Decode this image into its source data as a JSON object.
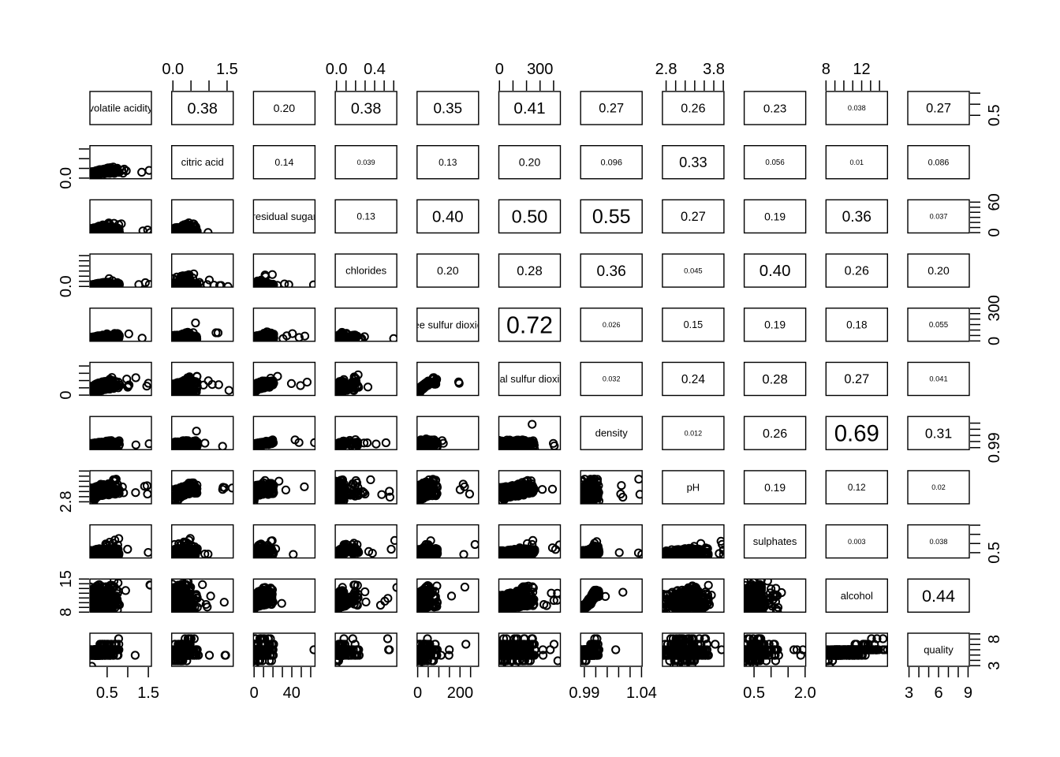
{
  "figure": {
    "kind": "R pairs scatterplot matrix",
    "background": "#ffffff",
    "foreground": "#000000"
  },
  "chart_data": {
    "type": "scatter",
    "subtype": "scatterplot_matrix",
    "legend_position": "none",
    "grid": false,
    "upper_triangle": "absolute correlation coefficients, text size proportional to |r|",
    "lower_triangle": "pairwise scatter plots, open circles, heavy overplotting",
    "knot_positions": [
      0,
      0.1,
      0.2,
      0.3,
      0.4,
      0.5,
      0.6,
      0.7,
      0.8,
      0.9,
      0.99,
      1
    ],
    "variables": [
      {
        "label": "volatile acidity",
        "range": [
          0.08,
          1.6
        ],
        "knots": [
          0,
          0.066,
          0.086,
          0.099,
          0.118,
          0.138,
          0.158,
          0.21,
          0.27,
          0.335,
          0.48,
          1
        ]
      },
      {
        "label": "citric acid",
        "range": [
          0.0,
          1.66
        ],
        "knots": [
          0,
          0.084,
          0.127,
          0.151,
          0.169,
          0.187,
          0.205,
          0.235,
          0.259,
          0.295,
          0.42,
          1
        ]
      },
      {
        "label": "residual sugar",
        "range": [
          0.6,
          65.8
        ],
        "knots": [
          0,
          0.009,
          0.015,
          0.018,
          0.021,
          0.037,
          0.064,
          0.106,
          0.147,
          0.192,
          0.33,
          1
        ]
      },
      {
        "label": "chlorides",
        "range": [
          0.009,
          0.611
        ],
        "knots": [
          0,
          0.037,
          0.048,
          0.055,
          0.058,
          0.063,
          0.075,
          0.093,
          0.115,
          0.143,
          0.38,
          1
        ]
      },
      {
        "label": "free sulfur dioxide",
        "range": [
          1,
          289
        ],
        "knots": [
          0,
          0.024,
          0.042,
          0.056,
          0.073,
          0.097,
          0.118,
          0.139,
          0.163,
          0.194,
          0.33,
          1
        ]
      },
      {
        "label": "total sulfur dioxide",
        "range": [
          6,
          440
        ],
        "knots": [
          0,
          0.053,
          0.097,
          0.157,
          0.214,
          0.258,
          0.3,
          0.341,
          0.382,
          0.438,
          0.585,
          1
        ]
      },
      {
        "label": "density",
        "range": [
          0.987,
          1.039
        ],
        "knots": [
          0,
          0.06,
          0.09,
          0.112,
          0.129,
          0.152,
          0.175,
          0.188,
          0.206,
          0.229,
          0.3,
          1
        ]
      },
      {
        "label": "pH",
        "range": [
          2.72,
          4.01
        ],
        "knots": [
          0,
          0.202,
          0.256,
          0.302,
          0.341,
          0.38,
          0.426,
          0.465,
          0.512,
          0.581,
          0.75,
          1
        ]
      },
      {
        "label": "sulphates",
        "range": [
          0.22,
          2.0
        ],
        "knots": [
          0,
          0.067,
          0.09,
          0.107,
          0.124,
          0.163,
          0.185,
          0.213,
          0.242,
          0.287,
          0.55,
          1
        ]
      },
      {
        "label": "alcohol",
        "range": [
          8,
          14.9
        ],
        "knots": [
          0,
          0.116,
          0.159,
          0.203,
          0.246,
          0.333,
          0.406,
          0.478,
          0.565,
          0.652,
          0.85,
          1
        ]
      },
      {
        "label": "quality",
        "range": [
          3,
          9
        ],
        "discrete": true,
        "knots": [
          0,
          0.333,
          0.333,
          0.333,
          0.333,
          0.5,
          0.5,
          0.5,
          0.5,
          0.667,
          0.833,
          1
        ]
      }
    ],
    "corr_upper": [
      [
        "0.38",
        "0.20",
        "0.38",
        "0.35",
        "0.41",
        "0.27",
        "0.26",
        "0.23",
        "0.038",
        "0.27"
      ],
      [
        "0.14",
        "0.039",
        "0.13",
        "0.20",
        "0.096",
        "0.33",
        "0.056",
        "0.01",
        "0.086"
      ],
      [
        "0.13",
        "0.40",
        "0.50",
        "0.55",
        "0.27",
        "0.19",
        "0.36",
        "0.037"
      ],
      [
        "0.20",
        "0.28",
        "0.36",
        "0.045",
        "0.40",
        "0.26",
        "0.20"
      ],
      [
        "0.72",
        "0.026",
        "0.15",
        "0.19",
        "0.18",
        "0.055"
      ],
      [
        "0.032",
        "0.24",
        "0.28",
        "0.27",
        "0.041"
      ],
      [
        "0.012",
        "0.26",
        "0.69",
        "0.31"
      ],
      [
        "0.19",
        "0.12",
        "0.02"
      ],
      [
        "0.003",
        "0.038"
      ],
      [
        "0.44"
      ]
    ],
    "axes": {
      "top": [
        {
          "col": 2,
          "ticks": {
            "n": 4,
            "from": 0.02,
            "to": 0.9
          },
          "labels": [
            {
              "text": "0.0",
              "at": 0.02
            },
            {
              "text": "1.5",
              "at": 0.9
            }
          ]
        },
        {
          "col": 4,
          "ticks": {
            "n": 7,
            "from": 0.02,
            "to": 0.95
          },
          "labels": [
            {
              "text": "0.0",
              "at": 0.02
            },
            {
              "text": "0.4",
              "at": 0.64
            }
          ]
        },
        {
          "col": 6,
          "ticks": {
            "n": 5,
            "from": 0.01,
            "to": 0.89
          },
          "labels": [
            {
              "text": "0",
              "at": 0.01
            },
            {
              "text": "300",
              "at": 0.67
            }
          ]
        },
        {
          "col": 8,
          "ticks": {
            "n": 7,
            "from": 0.06,
            "to": 0.99
          },
          "labels": [
            {
              "text": "2.8",
              "at": 0.06
            },
            {
              "text": "3.8",
              "at": 0.835
            }
          ]
        },
        {
          "col": 10,
          "ticks": {
            "n": 7,
            "from": 0.0,
            "to": 0.87
          },
          "labels": [
            {
              "text": "8",
              "at": 0.0
            },
            {
              "text": "12",
              "at": 0.58
            }
          ]
        }
      ],
      "bottom": [
        {
          "col": 1,
          "ticks": {
            "n": 3,
            "from": 0.28,
            "to": 0.95
          },
          "labels": [
            {
              "text": "0.5",
              "at": 0.28
            },
            {
              "text": "1.5",
              "at": 0.95
            }
          ]
        },
        {
          "col": 3,
          "ticks": {
            "n": 7,
            "from": 0.01,
            "to": 0.93
          },
          "labels": [
            {
              "text": "0",
              "at": 0.01
            },
            {
              "text": "40",
              "at": 0.62
            }
          ]
        },
        {
          "col": 5,
          "ticks": {
            "n": 6,
            "from": 0.01,
            "to": 0.87
          },
          "labels": [
            {
              "text": "0",
              "at": 0.01
            },
            {
              "text": "200",
              "at": 0.7
            }
          ]
        },
        {
          "col": 7,
          "ticks": {
            "n": 6,
            "from": 0.06,
            "to": 0.99
          },
          "labels": [
            {
              "text": "0.99",
              "at": 0.06
            },
            {
              "text": "1.04",
              "at": 0.99
            }
          ]
        },
        {
          "col": 9,
          "ticks": {
            "n": 4,
            "from": 0.16,
            "to": 0.99
          },
          "labels": [
            {
              "text": "0.5",
              "at": 0.16
            },
            {
              "text": "2.0",
              "at": 0.99
            }
          ]
        },
        {
          "col": 11,
          "ticks": {
            "n": 7,
            "from": 0.02,
            "to": 0.98
          },
          "labels": [
            {
              "text": "3",
              "at": 0.02
            },
            {
              "text": "6",
              "at": 0.5
            },
            {
              "text": "9",
              "at": 0.98
            }
          ]
        }
      ],
      "left": [
        {
          "row": 2,
          "ticks": {
            "n": 4,
            "from": 0.02,
            "to": 0.9
          },
          "labels": [
            {
              "text": "0.0",
              "at": 0.02
            }
          ]
        },
        {
          "row": 4,
          "ticks": {
            "n": 7,
            "from": 0.02,
            "to": 0.95
          },
          "labels": [
            {
              "text": "0.0",
              "at": 0.02
            }
          ]
        },
        {
          "row": 6,
          "ticks": {
            "n": 5,
            "from": 0.01,
            "to": 0.89
          },
          "labels": [
            {
              "text": "0",
              "at": 0.01
            }
          ]
        },
        {
          "row": 8,
          "ticks": {
            "n": 7,
            "from": 0.06,
            "to": 0.99
          },
          "labels": [
            {
              "text": "2.8",
              "at": 0.06
            }
          ]
        },
        {
          "row": 10,
          "ticks": {
            "n": 8,
            "from": 0.0,
            "to": 1.0
          },
          "labels": [
            {
              "text": "8",
              "at": 0.0
            },
            {
              "text": "15",
              "at": 1.0
            }
          ]
        }
      ],
      "right": [
        {
          "row": 1,
          "ticks": {
            "n": 3,
            "from": 0.28,
            "to": 0.95
          },
          "labels": [
            {
              "text": "0.5",
              "at": 0.28
            }
          ]
        },
        {
          "row": 3,
          "ticks": {
            "n": 7,
            "from": 0.01,
            "to": 0.93
          },
          "labels": [
            {
              "text": "0",
              "at": 0.01
            },
            {
              "text": "60",
              "at": 0.93
            }
          ]
        },
        {
          "row": 5,
          "ticks": {
            "n": 7,
            "from": 0.01,
            "to": 1.0
          },
          "labels": [
            {
              "text": "0",
              "at": 0.01
            },
            {
              "text": "300",
              "at": 1.0
            }
          ]
        },
        {
          "row": 7,
          "ticks": {
            "n": 5,
            "from": 0.06,
            "to": 0.8
          },
          "labels": [
            {
              "text": "0.99",
              "at": 0.06
            }
          ]
        },
        {
          "row": 9,
          "ticks": {
            "n": 4,
            "from": 0.16,
            "to": 0.99
          },
          "labels": [
            {
              "text": "0.5",
              "at": 0.16
            }
          ]
        },
        {
          "row": 11,
          "ticks": {
            "n": 7,
            "from": 0.02,
            "to": 0.98
          },
          "labels": [
            {
              "text": "3",
              "at": 0.02
            },
            {
              "text": "8",
              "at": 0.82
            }
          ]
        }
      ]
    }
  }
}
